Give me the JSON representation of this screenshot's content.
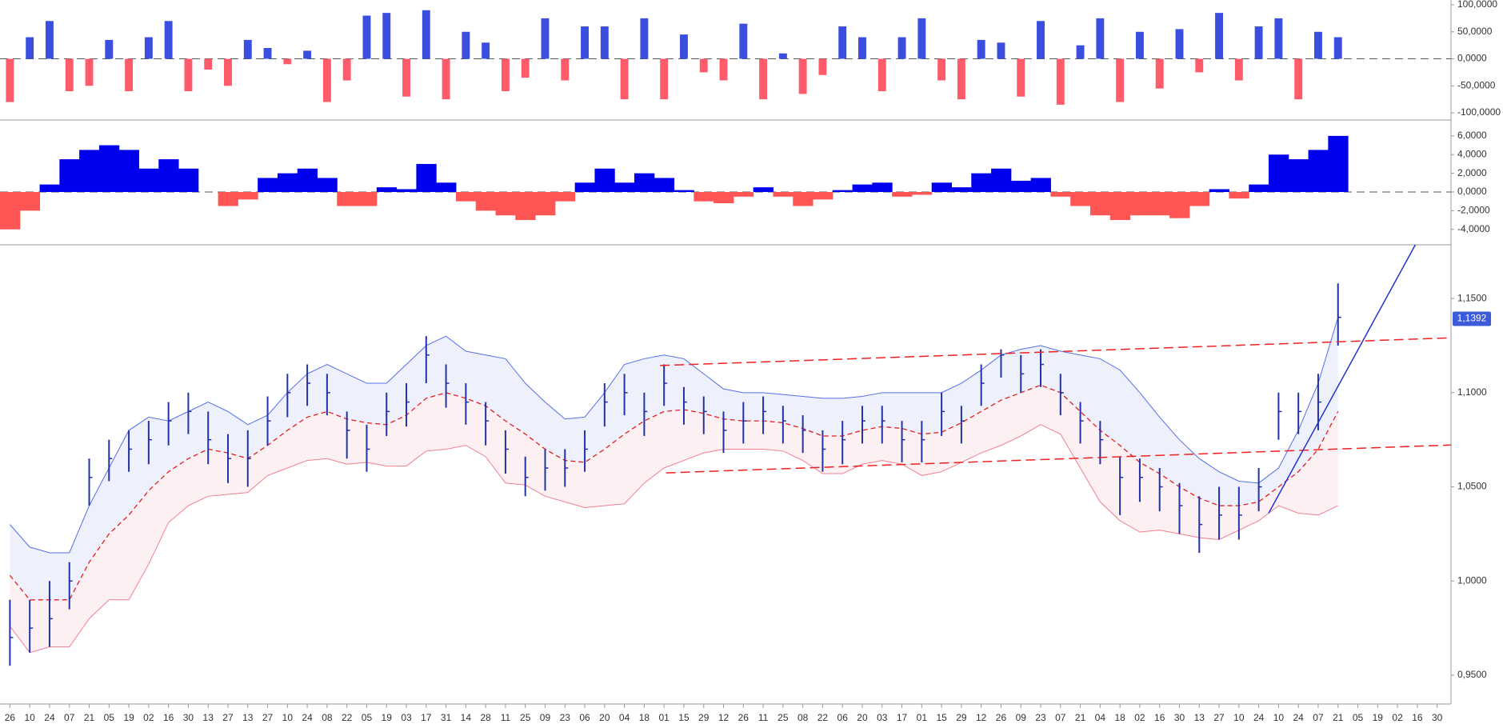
{
  "chart_data": [
    {
      "type": "bar",
      "x": [
        0,
        1,
        2,
        3,
        4,
        5,
        6,
        7,
        8,
        9,
        10,
        11,
        12,
        13,
        14,
        15,
        16,
        17,
        18,
        19,
        20,
        21,
        22,
        23,
        24,
        25,
        26,
        27,
        28,
        29,
        30,
        31,
        32,
        33,
        34,
        35,
        36,
        37,
        38,
        39,
        40,
        41,
        42,
        43,
        44,
        45,
        46,
        47,
        48,
        49,
        50,
        51,
        52,
        53,
        54,
        55,
        56,
        57,
        58,
        59,
        60,
        61,
        62,
        63,
        64,
        65,
        66,
        67
      ],
      "values": [
        -80000,
        40000,
        70000,
        -60000,
        -50000,
        35000,
        -60000,
        40000,
        70000,
        -60000,
        -20000,
        -50000,
        35000,
        20000,
        -10000,
        15000,
        -80000,
        -40000,
        80000,
        85000,
        -70000,
        90000,
        -75000,
        50000,
        30000,
        -60000,
        -35000,
        75000,
        -40000,
        60000,
        60000,
        -75000,
        75000,
        -75000,
        45000,
        -25000,
        -40000,
        65000,
        -75000,
        10000,
        -65000,
        -30000,
        60000,
        40000,
        -60000,
        40000,
        75000,
        -40000,
        -75000,
        35000,
        30000,
        -70000,
        70000,
        -85000,
        25000,
        75000,
        -80000,
        50000,
        -55000,
        55000,
        -25000,
        85000,
        -40000,
        60000,
        75000,
        -75000,
        50000,
        40000
      ],
      "colors": {
        "positive": "#3a4fe0",
        "negative": "#ff5b6b"
      },
      "xlim": [
        -0.5,
        72.7
      ],
      "ylim": [
        -113300,
        108900
      ],
      "yticks": [
        {
          "value": 100000,
          "label": "100,0000"
        },
        {
          "value": 50000,
          "label": "50,0000"
        },
        {
          "value": 0,
          "label": "0,0000"
        },
        {
          "value": -50000,
          "label": "-50,0000"
        },
        {
          "value": -100000,
          "label": "-100,0000"
        }
      ],
      "zero_line": true
    },
    {
      "type": "area",
      "x": [
        0,
        1,
        2,
        3,
        4,
        5,
        6,
        7,
        8,
        9,
        10,
        11,
        12,
        13,
        14,
        15,
        16,
        17,
        18,
        19,
        20,
        21,
        22,
        23,
        24,
        25,
        26,
        27,
        28,
        29,
        30,
        31,
        32,
        33,
        34,
        35,
        36,
        37,
        38,
        39,
        40,
        41,
        42,
        43,
        44,
        45,
        46,
        47,
        48,
        49,
        50,
        51,
        52,
        53,
        54,
        55,
        56,
        57,
        58,
        59,
        60,
        61,
        62,
        63,
        64,
        65,
        66,
        67
      ],
      "values": [
        -4000,
        -2000,
        800,
        3500,
        4500,
        5000,
        4500,
        2500,
        3500,
        2500,
        0,
        -1500,
        -800,
        1500,
        2000,
        2500,
        1500,
        -1500,
        -1500,
        500,
        300,
        3000,
        1000,
        -1000,
        -2000,
        -2500,
        -3000,
        -2500,
        -1000,
        1000,
        2500,
        1000,
        2000,
        1500,
        200,
        -1000,
        -1200,
        -500,
        500,
        -500,
        -1500,
        -800,
        200,
        800,
        1000,
        -500,
        -300,
        1000,
        500,
        2000,
        2500,
        1200,
        1500,
        -500,
        -1500,
        -2500,
        -3000,
        -2500,
        -2500,
        -2800,
        -1500,
        300,
        -700,
        800,
        4000,
        3500,
        4500,
        6000
      ],
      "colors": {
        "positive": "#0000ee",
        "negative": "#ff5555"
      },
      "xlim": [
        -0.5,
        72.7
      ],
      "ylim": [
        -5650,
        7700
      ],
      "yticks": [
        {
          "value": 6000,
          "label": "6,0000"
        },
        {
          "value": 4000,
          "label": "4,0000"
        },
        {
          "value": 2000,
          "label": "2,0000"
        },
        {
          "value": 0,
          "label": "0,0000"
        },
        {
          "value": -2000,
          "label": "-2,0000"
        },
        {
          "value": -4000,
          "label": "-4,0000"
        }
      ],
      "zero_line": true
    },
    {
      "type": "ohlc",
      "x": [
        0,
        1,
        2,
        3,
        4,
        5,
        6,
        7,
        8,
        9,
        10,
        11,
        12,
        13,
        14,
        15,
        16,
        17,
        18,
        19,
        20,
        21,
        22,
        23,
        24,
        25,
        26,
        27,
        28,
        29,
        30,
        31,
        32,
        33,
        34,
        35,
        36,
        37,
        38,
        39,
        40,
        41,
        42,
        43,
        44,
        45,
        46,
        47,
        48,
        49,
        50,
        51,
        52,
        53,
        54,
        55,
        56,
        57,
        58,
        59,
        60,
        61,
        62,
        63,
        64,
        65,
        66,
        67
      ],
      "high": [
        0.99,
        0.99,
        1.0,
        1.01,
        1.065,
        1.075,
        1.08,
        1.085,
        1.095,
        1.1,
        1.09,
        1.078,
        1.08,
        1.098,
        1.11,
        1.115,
        1.11,
        1.09,
        1.083,
        1.1,
        1.105,
        1.13,
        1.115,
        1.105,
        1.095,
        1.08,
        1.066,
        1.07,
        1.07,
        1.08,
        1.105,
        1.11,
        1.1,
        1.115,
        1.103,
        1.098,
        1.09,
        1.095,
        1.098,
        1.093,
        1.088,
        1.08,
        1.085,
        1.093,
        1.093,
        1.085,
        1.085,
        1.1,
        1.093,
        1.115,
        1.123,
        1.12,
        1.123,
        1.11,
        1.095,
        1.085,
        1.066,
        1.065,
        1.06,
        1.052,
        1.045,
        1.05,
        1.05,
        1.06,
        1.1,
        1.1,
        1.11,
        1.158
      ],
      "low": [
        0.955,
        0.962,
        0.965,
        0.985,
        1.04,
        1.053,
        1.058,
        1.062,
        1.072,
        1.078,
        1.062,
        1.052,
        1.05,
        1.072,
        1.087,
        1.093,
        1.088,
        1.065,
        1.058,
        1.077,
        1.082,
        1.105,
        1.092,
        1.083,
        1.072,
        1.057,
        1.045,
        1.048,
        1.05,
        1.058,
        1.082,
        1.088,
        1.077,
        1.093,
        1.083,
        1.078,
        1.068,
        1.073,
        1.078,
        1.073,
        1.068,
        1.058,
        1.062,
        1.073,
        1.073,
        1.063,
        1.063,
        1.077,
        1.073,
        1.093,
        1.108,
        1.1,
        1.103,
        1.088,
        1.073,
        1.062,
        1.035,
        1.042,
        1.037,
        1.025,
        1.015,
        1.022,
        1.022,
        1.037,
        1.075,
        1.078,
        1.08,
        1.125
      ],
      "close": [
        0.97,
        0.975,
        0.98,
        1.0,
        1.055,
        1.065,
        1.07,
        1.075,
        1.085,
        1.09,
        1.075,
        1.065,
        1.065,
        1.085,
        1.1,
        1.105,
        1.1,
        1.08,
        1.07,
        1.09,
        1.095,
        1.12,
        1.105,
        1.095,
        1.085,
        1.07,
        1.055,
        1.06,
        1.06,
        1.07,
        1.095,
        1.1,
        1.09,
        1.105,
        1.095,
        1.09,
        1.08,
        1.085,
        1.09,
        1.085,
        1.08,
        1.07,
        1.075,
        1.085,
        1.085,
        1.075,
        1.075,
        1.09,
        1.085,
        1.105,
        1.12,
        1.11,
        1.115,
        1.1,
        1.085,
        1.075,
        1.055,
        1.055,
        1.05,
        1.04,
        1.03,
        1.035,
        1.035,
        1.05,
        1.09,
        1.09,
        1.095,
        1.14
      ],
      "color": "#2233aa",
      "bands": {
        "upper": [
          1.03,
          1.018,
          1.015,
          1.015,
          1.04,
          1.06,
          1.08,
          1.087,
          1.085,
          1.09,
          1.095,
          1.09,
          1.083,
          1.088,
          1.1,
          1.11,
          1.115,
          1.11,
          1.105,
          1.105,
          1.115,
          1.125,
          1.13,
          1.122,
          1.12,
          1.118,
          1.105,
          1.095,
          1.086,
          1.087,
          1.1,
          1.115,
          1.118,
          1.12,
          1.118,
          1.11,
          1.102,
          1.1,
          1.1,
          1.099,
          1.098,
          1.097,
          1.097,
          1.098,
          1.1,
          1.1,
          1.1,
          1.1,
          1.105,
          1.112,
          1.12,
          1.123,
          1.125,
          1.122,
          1.12,
          1.118,
          1.112,
          1.1,
          1.087,
          1.075,
          1.065,
          1.058,
          1.053,
          1.052,
          1.06,
          1.08,
          1.105,
          1.14
        ],
        "middle": [
          1.003,
          0.99,
          0.99,
          0.99,
          1.01,
          1.025,
          1.035,
          1.048,
          1.058,
          1.065,
          1.07,
          1.068,
          1.065,
          1.072,
          1.08,
          1.087,
          1.09,
          1.086,
          1.084,
          1.083,
          1.088,
          1.097,
          1.1,
          1.097,
          1.093,
          1.085,
          1.078,
          1.07,
          1.064,
          1.063,
          1.07,
          1.078,
          1.085,
          1.09,
          1.091,
          1.089,
          1.086,
          1.085,
          1.085,
          1.084,
          1.081,
          1.077,
          1.077,
          1.08,
          1.082,
          1.081,
          1.078,
          1.079,
          1.084,
          1.09,
          1.096,
          1.1,
          1.104,
          1.1,
          1.09,
          1.08,
          1.072,
          1.063,
          1.057,
          1.05,
          1.044,
          1.04,
          1.04,
          1.042,
          1.05,
          1.058,
          1.07,
          1.09
        ],
        "lower": [
          0.976,
          0.962,
          0.965,
          0.965,
          0.98,
          0.99,
          0.99,
          1.009,
          1.031,
          1.04,
          1.045,
          1.046,
          1.047,
          1.056,
          1.06,
          1.064,
          1.065,
          1.062,
          1.063,
          1.061,
          1.061,
          1.069,
          1.07,
          1.072,
          1.066,
          1.052,
          1.051,
          1.045,
          1.042,
          1.039,
          1.04,
          1.041,
          1.052,
          1.06,
          1.064,
          1.068,
          1.07,
          1.07,
          1.07,
          1.069,
          1.064,
          1.057,
          1.057,
          1.062,
          1.064,
          1.062,
          1.056,
          1.058,
          1.063,
          1.068,
          1.072,
          1.077,
          1.083,
          1.078,
          1.06,
          1.042,
          1.032,
          1.026,
          1.027,
          1.025,
          1.023,
          1.022,
          1.027,
          1.032,
          1.04,
          1.036,
          1.035,
          1.04
        ],
        "upper_color": "#5570e8",
        "middle_color": "#e02020",
        "lower_color": "#f08090",
        "upper_fill": "#eef0fc",
        "lower_fill": "#fcf0f3"
      },
      "trendlines": [
        {
          "x": [
            32.8,
            72.7
          ],
          "y": [
            1.1144,
            1.1291
          ],
          "color": "#ee2222",
          "dash": true
        },
        {
          "x": [
            33.1,
            72.7
          ],
          "y": [
            1.0574,
            1.0722
          ],
          "color": "#ee2222",
          "dash": true
        },
        {
          "x": [
            63.5,
            70.9
          ],
          "y": [
            1.036,
            1.1785
          ],
          "color": "#2233cc",
          "dash": false
        }
      ],
      "last_value": {
        "value": 1.1392,
        "label": "1,1392",
        "color": "#3d5bd9"
      },
      "xlim": [
        -0.5,
        72.7
      ],
      "ylim": [
        0.9347,
        1.1785
      ],
      "yticks": [
        {
          "value": 1.15,
          "label": "1,1500"
        },
        {
          "value": 1.1,
          "label": "1,1000"
        },
        {
          "value": 1.05,
          "label": "1,0500"
        },
        {
          "value": 1.0,
          "label": "1,0000"
        },
        {
          "value": 0.95,
          "label": "0,9500"
        }
      ],
      "xticks": [
        {
          "value": 0,
          "label": "26"
        },
        {
          "value": 1,
          "label": "10"
        },
        {
          "value": 2,
          "label": "24"
        },
        {
          "value": 3,
          "label": "07"
        },
        {
          "value": 4,
          "label": "21"
        },
        {
          "value": 5,
          "label": "05"
        },
        {
          "value": 6,
          "label": "19"
        },
        {
          "value": 7,
          "label": "02"
        },
        {
          "value": 8,
          "label": "16"
        },
        {
          "value": 9,
          "label": "30"
        },
        {
          "value": 10,
          "label": "13"
        },
        {
          "value": 11,
          "label": "27"
        },
        {
          "value": 12,
          "label": "13"
        },
        {
          "value": 13,
          "label": "27"
        },
        {
          "value": 14,
          "label": "10"
        },
        {
          "value": 15,
          "label": "24"
        },
        {
          "value": 16,
          "label": "08"
        },
        {
          "value": 17,
          "label": "22"
        },
        {
          "value": 18,
          "label": "05"
        },
        {
          "value": 19,
          "label": "19"
        },
        {
          "value": 20,
          "label": "03"
        },
        {
          "value": 21,
          "label": "17"
        },
        {
          "value": 22,
          "label": "31"
        },
        {
          "value": 23,
          "label": "14"
        },
        {
          "value": 24,
          "label": "28"
        },
        {
          "value": 25,
          "label": "11"
        },
        {
          "value": 26,
          "label": "25"
        },
        {
          "value": 27,
          "label": "09"
        },
        {
          "value": 28,
          "label": "23"
        },
        {
          "value": 29,
          "label": "06"
        },
        {
          "value": 30,
          "label": "20"
        },
        {
          "value": 31,
          "label": "04"
        },
        {
          "value": 32,
          "label": "18"
        },
        {
          "value": 33,
          "label": "01"
        },
        {
          "value": 34,
          "label": "15"
        },
        {
          "value": 35,
          "label": "29"
        },
        {
          "value": 36,
          "label": "12"
        },
        {
          "value": 37,
          "label": "26"
        },
        {
          "value": 38,
          "label": "11"
        },
        {
          "value": 39,
          "label": "25"
        },
        {
          "value": 40,
          "label": "08"
        },
        {
          "value": 41,
          "label": "22"
        },
        {
          "value": 42,
          "label": "06"
        },
        {
          "value": 43,
          "label": "20"
        },
        {
          "value": 44,
          "label": "03"
        },
        {
          "value": 45,
          "label": "17"
        },
        {
          "value": 46,
          "label": "01"
        },
        {
          "value": 47,
          "label": "15"
        },
        {
          "value": 48,
          "label": "29"
        },
        {
          "value": 49,
          "label": "12"
        },
        {
          "value": 50,
          "label": "26"
        },
        {
          "value": 51,
          "label": "09"
        },
        {
          "value": 52,
          "label": "23"
        },
        {
          "value": 53,
          "label": "07"
        },
        {
          "value": 54,
          "label": "21"
        },
        {
          "value": 55,
          "label": "04"
        },
        {
          "value": 56,
          "label": "18"
        },
        {
          "value": 57,
          "label": "02"
        },
        {
          "value": 58,
          "label": "16"
        },
        {
          "value": 59,
          "label": "30"
        },
        {
          "value": 60,
          "label": "13"
        },
        {
          "value": 61,
          "label": "27"
        },
        {
          "value": 62,
          "label": "10"
        },
        {
          "value": 63,
          "label": "24"
        },
        {
          "value": 64,
          "label": "10"
        },
        {
          "value": 65,
          "label": "24"
        },
        {
          "value": 66,
          "label": "07"
        },
        {
          "value": 67,
          "label": "21"
        },
        {
          "value": 68,
          "label": "05"
        },
        {
          "value": 69,
          "label": "19"
        },
        {
          "value": 70,
          "label": "02"
        },
        {
          "value": 71,
          "label": "16"
        },
        {
          "value": 72,
          "label": "30"
        }
      ]
    }
  ]
}
